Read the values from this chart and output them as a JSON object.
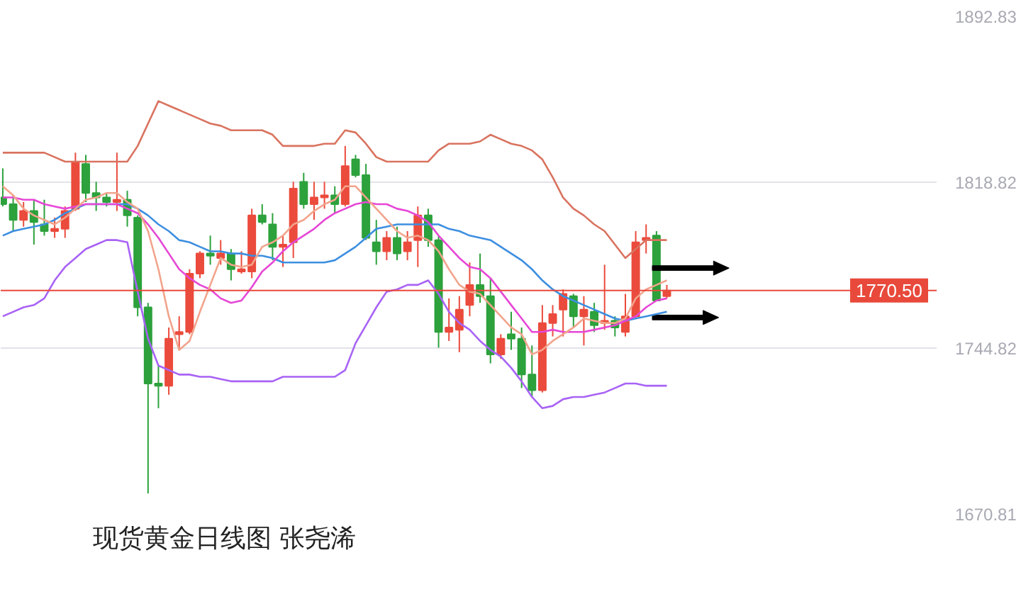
{
  "chart_data": {
    "type": "candlestick",
    "title": "现货黄金日线图 张尧浠",
    "categories": [
      null,
      null,
      null,
      null,
      null,
      null,
      null,
      null,
      null,
      null,
      null,
      null,
      null,
      null,
      null,
      null,
      null,
      null,
      null,
      null,
      null,
      null,
      null,
      null,
      null,
      null,
      null,
      null,
      null,
      null,
      null,
      null,
      null,
      null,
      null,
      null,
      null,
      null,
      null,
      null,
      null,
      null,
      null,
      null,
      null,
      null,
      null,
      null,
      null,
      null,
      null,
      null,
      null,
      null,
      null,
      null,
      null,
      null,
      null,
      null,
      null,
      null,
      null,
      null,
      null
    ],
    "ohlc": [
      [
        1812,
        1825,
        1808,
        1809
      ],
      [
        1809,
        1813,
        1797,
        1802
      ],
      [
        1802,
        1810,
        1799,
        1806
      ],
      [
        1806,
        1811,
        1791,
        1801
      ],
      [
        1800,
        1811,
        1795,
        1797
      ],
      [
        1797,
        1803,
        1794,
        1798
      ],
      [
        1798,
        1808,
        1794,
        1806
      ],
      [
        1807,
        1832,
        1806,
        1828
      ],
      [
        1827,
        1831,
        1810,
        1814
      ],
      [
        1814,
        1819,
        1806,
        1812
      ],
      [
        1812,
        1814,
        1808,
        1810
      ],
      [
        1810,
        1832,
        1806,
        1811
      ],
      [
        1811,
        1815,
        1799,
        1804
      ],
      [
        1803,
        1804,
        1759,
        1763
      ],
      [
        1763,
        1765,
        1680,
        1729
      ],
      [
        1729,
        1737,
        1718,
        1728
      ],
      [
        1728,
        1754,
        1724,
        1749
      ],
      [
        1751,
        1759,
        1744,
        1752
      ],
      [
        1752,
        1780,
        1751,
        1778
      ],
      [
        1778,
        1788,
        1776,
        1787
      ],
      [
        1787,
        1795,
        1782,
        1786
      ],
      [
        1785,
        1793,
        1782,
        1787
      ],
      [
        1787,
        1789,
        1775,
        1780
      ],
      [
        1779,
        1788,
        1778,
        1780
      ],
      [
        1779,
        1807,
        1776,
        1804
      ],
      [
        1804,
        1809,
        1800,
        1801
      ],
      [
        1800,
        1805,
        1784,
        1790
      ],
      [
        1790,
        1795,
        1781,
        1791
      ],
      [
        1792,
        1819,
        1785,
        1816
      ],
      [
        1819,
        1823,
        1807,
        1809
      ],
      [
        1809,
        1819,
        1802,
        1812
      ],
      [
        1812,
        1819,
        1807,
        1813
      ],
      [
        1813,
        1817,
        1805,
        1809
      ],
      [
        1809,
        1835,
        1808,
        1826
      ],
      [
        1829,
        1831,
        1821,
        1822
      ],
      [
        1822,
        1827,
        1793,
        1794
      ],
      [
        1792,
        1802,
        1782,
        1788
      ],
      [
        1788,
        1797,
        1784,
        1794
      ],
      [
        1794,
        1799,
        1784,
        1787
      ],
      [
        1788,
        1797,
        1784,
        1792
      ],
      [
        1793,
        1808,
        1781,
        1804
      ],
      [
        1804,
        1807,
        1790,
        1793
      ],
      [
        1793,
        1795,
        1745,
        1752
      ],
      [
        1752,
        1767,
        1748,
        1754
      ],
      [
        1753,
        1768,
        1743,
        1762
      ],
      [
        1764,
        1783,
        1759,
        1773
      ],
      [
        1773,
        1787,
        1765,
        1768
      ],
      [
        1768,
        1776,
        1738,
        1742
      ],
      [
        1742,
        1751,
        1740,
        1749
      ],
      [
        1751,
        1761,
        1744,
        1749
      ],
      [
        1749,
        1754,
        1727,
        1733
      ],
      [
        1733,
        1746,
        1723,
        1726
      ],
      [
        1726,
        1764,
        1725,
        1756
      ],
      [
        1756,
        1764,
        1750,
        1760
      ],
      [
        1762,
        1771,
        1750,
        1769
      ],
      [
        1768,
        1769,
        1754,
        1759
      ],
      [
        1759,
        1768,
        1746,
        1762
      ],
      [
        1761,
        1765,
        1752,
        1755
      ],
      [
        1756,
        1782,
        1753,
        1757
      ],
      [
        1757,
        1759,
        1750,
        1754
      ],
      [
        1752,
        1769,
        1750,
        1759
      ],
      [
        1759,
        1797,
        1758,
        1792
      ],
      [
        1793,
        1800,
        1787,
        1794
      ],
      [
        1795,
        1797,
        1766,
        1766
      ],
      [
        1768,
        1773,
        1767,
        1770.5
      ]
    ],
    "colors": [
      "#2ca13c",
      "#2ca13c",
      "#eb4b3c",
      "#2ca13c",
      "#2ca13c",
      "#eb4b3c",
      "#eb4b3c",
      "#eb4b3c",
      "#2ca13c",
      "#2ca13c",
      "#2ca13c",
      "#eb4b3c",
      "#2ca13c",
      "#2ca13c",
      "#2ca13c",
      "#2ca13c",
      "#eb4b3c",
      "#eb4b3c",
      "#eb4b3c",
      "#eb4b3c",
      "#2ca13c",
      "#eb4b3c",
      "#2ca13c",
      "#eb4b3c",
      "#eb4b3c",
      "#2ca13c",
      "#2ca13c",
      "#eb4b3c",
      "#eb4b3c",
      "#2ca13c",
      "#eb4b3c",
      "#eb4b3c",
      "#2ca13c",
      "#eb4b3c",
      "#2ca13c",
      "#2ca13c",
      "#2ca13c",
      "#eb4b3c",
      "#2ca13c",
      "#eb4b3c",
      "#eb4b3c",
      "#2ca13c",
      "#2ca13c",
      "#eb4b3c",
      "#eb4b3c",
      "#eb4b3c",
      "#2ca13c",
      "#2ca13c",
      "#eb4b3c",
      "#2ca13c",
      "#2ca13c",
      "#2ca13c",
      "#eb4b3c",
      "#eb4b3c",
      "#eb4b3c",
      "#2ca13c",
      "#eb4b3c",
      "#2ca13c",
      "#eb4b3c",
      "#2ca13c",
      "#eb4b3c",
      "#eb4b3c",
      "#eb4b3c",
      "#2ca13c",
      "#eb4b3c"
    ],
    "series": [
      {
        "type": "line",
        "color": "#d9735f",
        "values": [
          1832,
          1832,
          1832,
          1832,
          1832,
          1830,
          1828,
          1828,
          1828,
          1828,
          1828,
          1828,
          1828,
          1835,
          1845,
          1855,
          1853,
          1851,
          1849,
          1847,
          1845,
          1844,
          1842,
          1842,
          1842,
          1842,
          1840,
          1835,
          1835,
          1835,
          1835,
          1836,
          1836,
          1842,
          1841,
          1836,
          1830,
          1828,
          1828,
          1828,
          1828,
          1828,
          1833,
          1836,
          1836,
          1836,
          1837,
          1840,
          1838,
          1836,
          1835,
          1833,
          1829,
          1821,
          1812,
          1807,
          1804,
          1800,
          1797,
          1791,
          1785,
          1789,
          1793,
          1793,
          1793
        ]
      },
      {
        "type": "line",
        "color": "#3d8fe0",
        "values": [
          1795,
          1797,
          1798,
          1799,
          1800,
          1802,
          1805,
          1807,
          1809,
          1809,
          1809,
          1809,
          1809,
          1807,
          1804,
          1800,
          1797,
          1793,
          1792,
          1790,
          1788,
          1788,
          1787,
          1787,
          1786,
          1786,
          1785,
          1783,
          1783,
          1783,
          1783,
          1783,
          1784,
          1787,
          1790,
          1794,
          1798,
          1799,
          1800,
          1800,
          1800,
          1800,
          1800,
          1798,
          1797,
          1795,
          1794,
          1793,
          1790,
          1787,
          1784,
          1780,
          1775,
          1771,
          1768,
          1766,
          1764,
          1762,
          1760,
          1758,
          1757,
          1758,
          1759,
          1760,
          1761
        ]
      },
      {
        "type": "line",
        "color": "#a863f5",
        "values": [
          1759,
          1761,
          1763,
          1764,
          1767,
          1775,
          1781,
          1785,
          1789,
          1791,
          1793,
          1793,
          1792,
          1770,
          1749,
          1737,
          1735,
          1733,
          1733,
          1732,
          1732,
          1731,
          1730,
          1730,
          1730,
          1730,
          1730,
          1732,
          1732,
          1732,
          1732,
          1732,
          1732,
          1735,
          1747,
          1755,
          1763,
          1770,
          1771,
          1773,
          1773,
          1775,
          1769,
          1761,
          1756,
          1753,
          1748,
          1744,
          1741,
          1736,
          1730,
          1723,
          1718,
          1719,
          1722,
          1723,
          1723,
          1724,
          1725,
          1727,
          1729,
          1729,
          1728,
          1728,
          1728
        ]
      },
      {
        "type": "line",
        "color": "#e647d6",
        "values": [
          1812,
          1812,
          1811,
          1811,
          1809,
          1808,
          1807,
          1808,
          1809,
          1809,
          1809,
          1809,
          1807,
          1805,
          1800,
          1794,
          1787,
          1780,
          1776,
          1773,
          1771,
          1767,
          1765,
          1766,
          1772,
          1779,
          1783,
          1788,
          1792,
          1795,
          1798,
          1802,
          1805,
          1807,
          1809,
          1810,
          1809,
          1809,
          1807,
          1806,
          1804,
          1801,
          1795,
          1790,
          1785,
          1781,
          1780,
          1776,
          1770,
          1764,
          1758,
          1752,
          1752,
          1753,
          1752,
          1752,
          1752,
          1753,
          1754,
          1755,
          1757,
          1759,
          1763,
          1766,
          1767
        ]
      },
      {
        "type": "line",
        "color": "#f2a48c",
        "values": [
          1817,
          1813,
          1807,
          1804,
          1802,
          1800,
          1803,
          1807,
          1811,
          1812,
          1814,
          1814,
          1810,
          1807,
          1797,
          1780,
          1759,
          1744,
          1748,
          1761,
          1773,
          1785,
          1782,
          1781,
          1782,
          1790,
          1792,
          1795,
          1800,
          1802,
          1806,
          1809,
          1811,
          1817,
          1817,
          1812,
          1807,
          1802,
          1797,
          1794,
          1795,
          1793,
          1788,
          1780,
          1773,
          1770,
          1769,
          1764,
          1759,
          1754,
          1751,
          1742,
          1744,
          1748,
          1751,
          1754,
          1758,
          1757,
          1756,
          1756,
          1758,
          1767,
          1771,
          1773,
          1775
        ]
      }
    ],
    "ylim": [
      1670.81,
      1892.83
    ],
    "yticks": [
      1670.81,
      1744.82,
      1818.82,
      1892.83
    ],
    "grid": "y",
    "tick_labels": "y",
    "ref_lines": [
      {
        "axis": "y",
        "value": 1770.5,
        "label": "1770.50",
        "color": "#e8493b"
      }
    ]
  }
}
